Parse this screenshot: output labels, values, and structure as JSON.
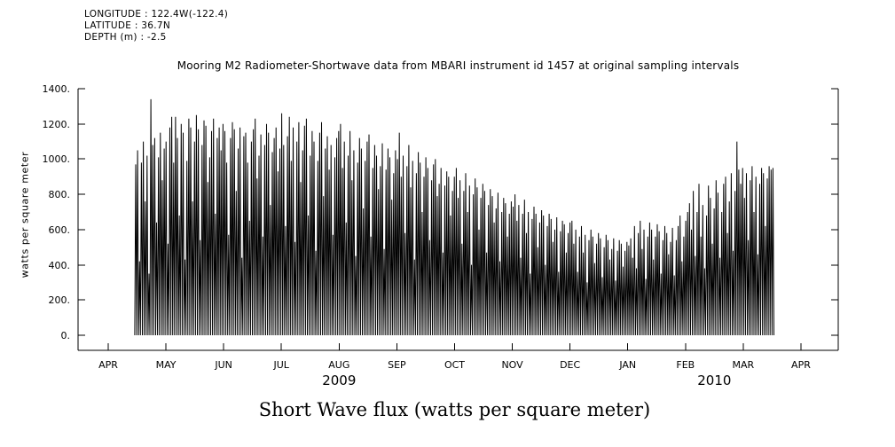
{
  "header": {
    "info_lines": [
      "LONGITUDE : 122.4W(-122.4)",
      "LATITUDE : 36.7N",
      "DEPTH (m) : -2.5"
    ]
  },
  "caption": "Short Wave flux (watts per square meter)",
  "chart_data": {
    "type": "line",
    "title": "Mooring M2 Radiometer-Shortwave data from MBARI instrument id 1457 at original sampling intervals",
    "xlabel": "",
    "ylabel": "watts per square meter",
    "series_name": "shortwave flux",
    "line_color": "#000000",
    "grid": false,
    "legend": false,
    "ylim": [
      -85,
      1400
    ],
    "y_ticks": [
      0,
      200,
      400,
      600,
      800,
      1000,
      1200,
      1400
    ],
    "y_tick_labels": [
      "0.",
      "200.",
      "400.",
      "600.",
      "800.",
      "1000.",
      "1200.",
      "1400."
    ],
    "x_tick_labels": [
      "APR",
      "MAY",
      "JUN",
      "JUL",
      "AUG",
      "SEP",
      "OCT",
      "NOV",
      "DEC",
      "JAN",
      "FEB",
      "MAR",
      "APR"
    ],
    "year_labels": [
      {
        "text": "2009",
        "month_index": 4
      },
      {
        "text": "2010",
        "month_index": 10.5
      }
    ],
    "x_start": "2009-04-15",
    "x_end": "2010-03-17",
    "start_day_offset": 14,
    "daily_peaks": [
      970,
      1050,
      420,
      980,
      1100,
      760,
      1020,
      350,
      1340,
      1080,
      1120,
      640,
      1010,
      1150,
      880,
      1060,
      1100,
      520,
      1180,
      1240,
      980,
      1240,
      1120,
      680,
      1200,
      1150,
      430,
      990,
      1230,
      1180,
      760,
      1100,
      1250,
      1170,
      540,
      1080,
      1220,
      1190,
      870,
      1010,
      1160,
      1230,
      690,
      1120,
      1180,
      1050,
      1200,
      1160,
      980,
      570,
      1120,
      1210,
      1170,
      820,
      1060,
      1180,
      440,
      1130,
      1150,
      980,
      650,
      1100,
      1170,
      1230,
      890,
      1020,
      1140,
      560,
      1080,
      1200,
      1150,
      740,
      1040,
      1120,
      1180,
      930,
      1060,
      1260,
      1080,
      620,
      1130,
      1240,
      990,
      1180,
      530,
      1100,
      1210,
      870,
      1050,
      1190,
      1230,
      680,
      1020,
      1160,
      1100,
      480,
      990,
      1150,
      1210,
      790,
      1060,
      1130,
      940,
      1080,
      570,
      1010,
      1120,
      1160,
      1200,
      950,
      1100,
      640,
      1020,
      1160,
      880,
      1050,
      450,
      980,
      1120,
      1060,
      720,
      990,
      1100,
      1140,
      560,
      950,
      1080,
      1020,
      830,
      960,
      1090,
      490,
      940,
      1060,
      1010,
      770,
      920,
      1050,
      1000,
      1150,
      900,
      1020,
      580,
      960,
      1080,
      840,
      990,
      430,
      920,
      1040,
      980,
      700,
      900,
      1010,
      950,
      540,
      880,
      970,
      1000,
      790,
      860,
      950,
      470,
      850,
      930,
      900,
      680,
      820,
      900,
      950,
      780,
      880,
      520,
      820,
      920,
      700,
      850,
      400,
      800,
      890,
      840,
      600,
      780,
      860,
      820,
      470,
      740,
      830,
      790,
      640,
      720,
      810,
      420,
      700,
      780,
      750,
      560,
      690,
      760,
      730,
      800,
      650,
      740,
      440,
      690,
      770,
      580,
      700,
      350,
      660,
      730,
      690,
      500,
      640,
      710,
      680,
      400,
      620,
      690,
      660,
      530,
      600,
      670,
      360,
      590,
      650,
      630,
      470,
      580,
      640,
      650,
      520,
      600,
      360,
      560,
      620,
      470,
      570,
      300,
      540,
      600,
      560,
      410,
      520,
      580,
      550,
      330,
      500,
      570,
      540,
      430,
      490,
      550,
      310,
      480,
      540,
      520,
      390,
      480,
      530,
      510,
      550,
      440,
      620,
      380,
      580,
      650,
      490,
      600,
      320,
      560,
      640,
      600,
      430,
      560,
      630,
      590,
      350,
      540,
      620,
      580,
      460,
      530,
      610,
      340,
      540,
      620,
      680,
      420,
      560,
      650,
      700,
      750,
      600,
      820,
      450,
      700,
      860,
      560,
      740,
      380,
      680,
      850,
      780,
      520,
      720,
      880,
      810,
      440,
      700,
      860,
      900,
      580,
      760,
      920,
      480,
      820,
      1100,
      940,
      860,
      950,
      780,
      920,
      540,
      880,
      960,
      700,
      900,
      460,
      860,
      950,
      920,
      620,
      890,
      960,
      940,
      950
    ]
  }
}
